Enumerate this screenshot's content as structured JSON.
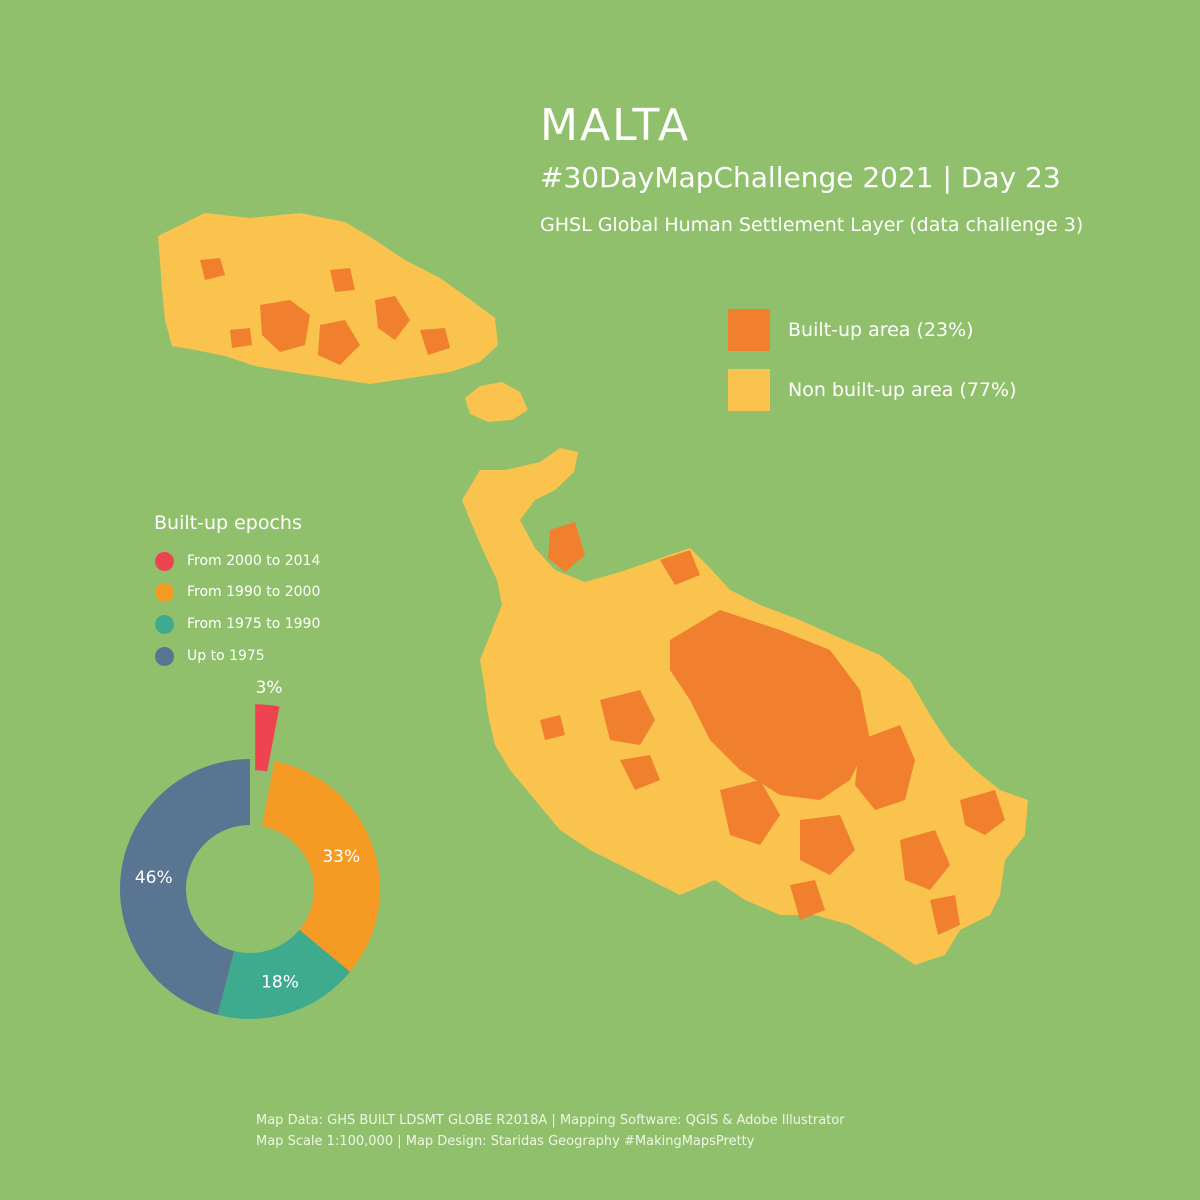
{
  "header": {
    "title": "MALTA",
    "subtitle": "#30DayMapChallenge 2021 | Day 23",
    "subtitle2": "GHSL Global Human Settlement Layer (data challenge 3)"
  },
  "legend": [
    {
      "label": "Built-up area (23%)",
      "color": "#f07f2e"
    },
    {
      "label": "Non built-up area (77%)",
      "color": "#f9c34e"
    }
  ],
  "epochs": {
    "title": "Built-up epochs",
    "items": [
      {
        "label": "From 2000 to 2014",
        "color": "#ee4350"
      },
      {
        "label": "From 1990 to 2000",
        "color": "#f59b24"
      },
      {
        "label": "From 1975 to 1990",
        "color": "#3fab8e"
      },
      {
        "label": "Up to 1975",
        "color": "#5a7591"
      }
    ]
  },
  "chart_data": {
    "type": "pie",
    "categories": [
      "From 2000 to 2014",
      "From 1990 to 2000",
      "From 1975 to 1990",
      "Up to 1975"
    ],
    "values": [
      3,
      33,
      18,
      46
    ],
    "labels": [
      "3%",
      "33%",
      "18%",
      "46%"
    ],
    "colors": [
      "#ee4350",
      "#f59b24",
      "#3fab8e",
      "#5a7591"
    ]
  },
  "footer": {
    "line1": "Map Data: GHS BUILT LDSMT GLOBE R2018A  | Mapping Software: QGIS & Adobe Illustrator",
    "line2": "Map Scale 1:100,000 | Map Design: Staridas Geography #MakingMapsPretty"
  }
}
